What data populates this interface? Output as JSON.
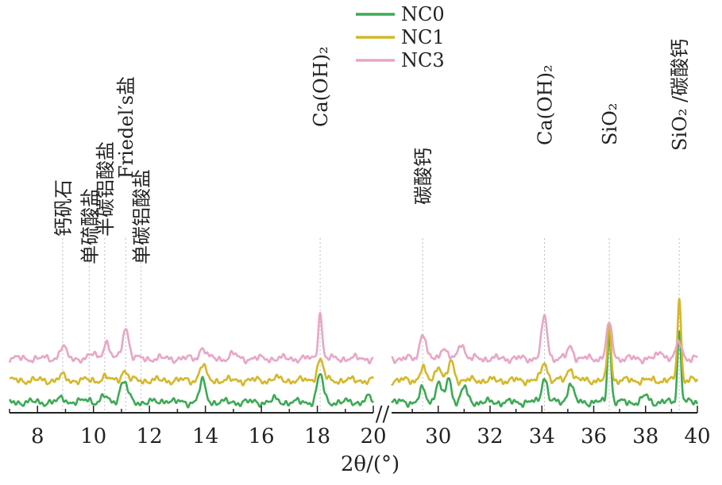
{
  "chart_data": {
    "type": "line",
    "title": "",
    "xlabel": "2θ/(°)",
    "ylabel": "",
    "x_ranges": [
      [
        7,
        20
      ],
      [
        28.2,
        40
      ]
    ],
    "axis_break": "//",
    "left_ticks": [
      8,
      10,
      12,
      14,
      16,
      18,
      20
    ],
    "right_ticks": [
      30,
      32,
      34,
      36,
      38,
      40
    ],
    "legend_position": "top-center",
    "grid": false,
    "series": [
      {
        "name": "NC0",
        "color": "#3daa55",
        "baseline": 0.0,
        "peaks": [
          [
            8.9,
            0.2
          ],
          [
            9.8,
            0.15
          ],
          [
            10.4,
            0.25
          ],
          [
            11.0,
            0.55
          ],
          [
            11.15,
            0.62
          ],
          [
            12.6,
            0.12
          ],
          [
            13.9,
            0.95
          ],
          [
            16.5,
            0.12
          ],
          [
            18.1,
            1.25
          ],
          [
            19.8,
            0.2
          ],
          [
            29.4,
            0.6
          ],
          [
            30.0,
            0.9
          ],
          [
            30.4,
            1.05
          ],
          [
            31.0,
            0.7
          ],
          [
            34.1,
            1.15
          ],
          [
            35.1,
            0.9
          ],
          [
            36.6,
            3.25
          ],
          [
            38.0,
            0.3
          ],
          [
            39.3,
            3.25
          ]
        ]
      },
      {
        "name": "NC1",
        "color": "#d4b82a",
        "baseline": 1.0,
        "peaks": [
          [
            8.9,
            0.2
          ],
          [
            10.4,
            0.15
          ],
          [
            11.1,
            0.45
          ],
          [
            13.9,
            0.7
          ],
          [
            16.5,
            0.1
          ],
          [
            18.1,
            0.95
          ],
          [
            29.4,
            0.55
          ],
          [
            30.0,
            0.7
          ],
          [
            30.5,
            0.85
          ],
          [
            34.1,
            0.85
          ],
          [
            35.1,
            0.6
          ],
          [
            36.6,
            2.6
          ],
          [
            39.3,
            3.8
          ]
        ]
      },
      {
        "name": "NC3",
        "color": "#e8a6c6",
        "baseline": 2.0,
        "peaks": [
          [
            8.9,
            0.55
          ],
          [
            10.0,
            0.2
          ],
          [
            10.45,
            0.75
          ],
          [
            11.15,
            1.45
          ],
          [
            13.9,
            0.5
          ],
          [
            15.0,
            0.2
          ],
          [
            18.1,
            2.15
          ],
          [
            29.4,
            1.2
          ],
          [
            30.2,
            0.55
          ],
          [
            30.9,
            0.75
          ],
          [
            34.1,
            1.9
          ],
          [
            35.1,
            0.55
          ],
          [
            36.6,
            1.55
          ],
          [
            38.6,
            0.35
          ],
          [
            39.3,
            0.75
          ]
        ]
      }
    ],
    "annotations": [
      {
        "text": "钙矾石",
        "x": 8.9
      },
      {
        "text": "单硫酸盐",
        "x": 9.85
      },
      {
        "text": "半碳铝酸盐",
        "x": 10.4
      },
      {
        "text": "Friedel′s盐",
        "x": 11.15
      },
      {
        "text": "单碳铝酸盐",
        "x": 11.7
      },
      {
        "text": "Ca(OH)₂",
        "x": 18.1
      },
      {
        "text": "碳酸钙",
        "x": 29.4
      },
      {
        "text": "Ca(OH)₂",
        "x": 34.1
      },
      {
        "text": "SiO₂",
        "x": 36.6
      },
      {
        "text": "SiO₂ /碳酸钙",
        "x": 39.3
      }
    ]
  }
}
